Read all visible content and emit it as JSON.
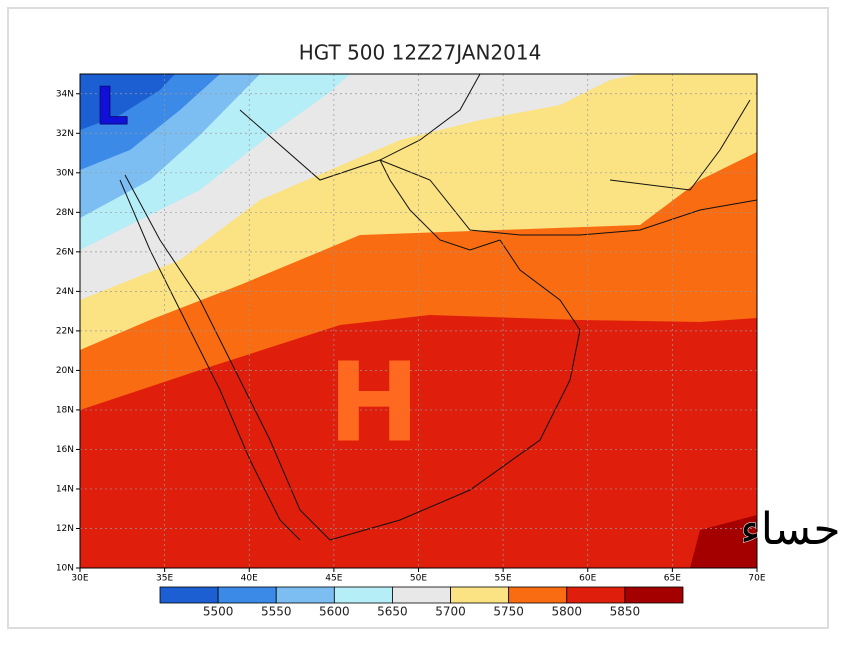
{
  "map": {
    "title": "HGT 500 12Z27JAN2014",
    "low_label": "L",
    "high_label": "H",
    "caption": "براري الاحساء",
    "lat_labels": [
      "10N",
      "12N",
      "14N",
      "16N",
      "18N",
      "20N",
      "22N",
      "24N",
      "26N",
      "28N",
      "30N",
      "32N",
      "34N"
    ],
    "lon_labels": [
      "30E",
      "35E",
      "40E",
      "45E",
      "50E",
      "55E",
      "60E",
      "65E",
      "70E"
    ],
    "legend": {
      "values": [
        5500,
        5550,
        5600,
        5650,
        5700,
        5750,
        5800,
        5850
      ],
      "colors": [
        "#1b5fd2",
        "#3c8ae8",
        "#7cbdf2",
        "#b6eef8",
        "#e8e8e8",
        "#fbe282",
        "#f96c12",
        "#e01e0c",
        "#a40000"
      ]
    }
  }
}
